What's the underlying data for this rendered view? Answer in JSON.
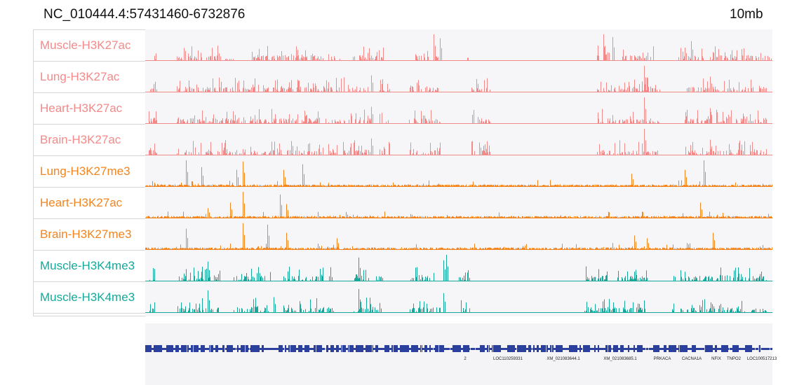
{
  "header": {
    "locus": "NC_010444.4:57431460-6732876",
    "scale": "10mb"
  },
  "tracks": [
    {
      "label": "Muscle-H3K27ac",
      "color": "#f28a8a",
      "profile": "ac1"
    },
    {
      "label": "Lung-H3K27ac",
      "color": "#f28a8a",
      "profile": "ac2"
    },
    {
      "label": "Heart-H3K27ac",
      "color": "#f28a8a",
      "profile": "ac2"
    },
    {
      "label": "Brain-H3K27ac",
      "color": "#f28a8a",
      "profile": "ac2"
    },
    {
      "label": "Lung-H3K27me3",
      "color": "#f2851f",
      "profile": "me3"
    },
    {
      "label": "Heart-H3K27ac",
      "color": "#f2851f",
      "profile": "me3b"
    },
    {
      "label": "Brain-H3K27me3",
      "color": "#f2851f",
      "profile": "me3c"
    },
    {
      "label": "Muscle-H3K4me3",
      "color": "#16a89a",
      "profile": "k4"
    },
    {
      "label": "Muscle-H3K4me3",
      "color": "#16a89a",
      "profile": "k4b"
    }
  ],
  "gene_track": {
    "color": "#2b3f9c",
    "genes": [
      {
        "name": "2",
        "pos": 0.51
      },
      {
        "name": "LOC110259331",
        "pos": 0.578
      },
      {
        "name": "XM_021083644.1",
        "pos": 0.667
      },
      {
        "name": "XM_021083685.1",
        "pos": 0.757
      },
      {
        "name": "PRKACA",
        "pos": 0.824
      },
      {
        "name": "CACNA1A",
        "pos": 0.871
      },
      {
        "name": "NFIX",
        "pos": 0.911
      },
      {
        "name": "TNPO2",
        "pos": 0.939
      },
      {
        "name": "LOC100517213",
        "pos": 0.983
      }
    ]
  }
}
